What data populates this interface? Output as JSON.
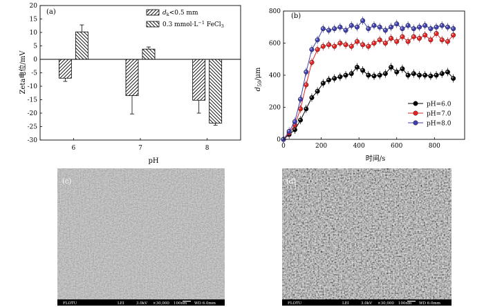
{
  "chart_data": [
    {
      "panel": "(a)",
      "type": "bar",
      "categories": [
        "6",
        "7",
        "8"
      ],
      "xlabel": "pH",
      "ylabel": "Zeta电位/mV",
      "ylim": [
        -30,
        20
      ],
      "yticks": [
        "20",
        "15",
        "10",
        "5",
        "0",
        "-5",
        "-10",
        "-15",
        "-20",
        "-25",
        "-30"
      ],
      "legend_position": "top-right",
      "series": [
        {
          "legend_pre": "d",
          "legend_sub": "k",
          "legend_post": "<0.5 mm",
          "hatch": "forward",
          "values": [
            -7,
            -13.5,
            -15.2
          ],
          "errors": [
            1.2,
            6.8,
            4.8
          ]
        },
        {
          "legend_pre": "0.3 mmol·L",
          "legend_sup": "−1",
          "legend_post": " FeCl",
          "legend_sub": "3",
          "hatch": "back",
          "values": [
            10.2,
            3.8,
            -23.7
          ],
          "errors": [
            2.6,
            0.8,
            0.8
          ]
        }
      ]
    },
    {
      "panel": "(b)",
      "type": "line",
      "xlabel": "时间/s",
      "ylabel_pre": "d",
      "ylabel_sub": "50",
      "ylabel_post": "/μm",
      "xlim": [
        0,
        960
      ],
      "ylim": [
        0,
        800
      ],
      "xticks": [
        "0",
        "200",
        "400",
        "600",
        "800"
      ],
      "yticks": [
        "0",
        "200",
        "400",
        "600",
        "800"
      ],
      "legend_position": "right",
      "x": [
        0,
        30,
        60,
        90,
        120,
        150,
        180,
        210,
        240,
        270,
        300,
        330,
        360,
        390,
        420,
        450,
        480,
        510,
        540,
        570,
        600,
        630,
        660,
        690,
        720,
        750,
        780,
        810,
        840,
        870,
        900
      ],
      "series": [
        {
          "name": "pH=6.0",
          "color": "#000000",
          "values": [
            0,
            30,
            60,
            120,
            190,
            260,
            300,
            350,
            370,
            380,
            390,
            400,
            410,
            450,
            430,
            400,
            395,
            400,
            410,
            450,
            420,
            440,
            400,
            410,
            400,
            400,
            395,
            400,
            410,
            420,
            380
          ]
        },
        {
          "name": "pH=7.0",
          "color": "#e52222",
          "values": [
            0,
            40,
            90,
            190,
            340,
            480,
            560,
            580,
            590,
            580,
            600,
            590,
            580,
            610,
            590,
            580,
            600,
            620,
            600,
            630,
            610,
            640,
            610,
            640,
            630,
            650,
            620,
            660,
            620,
            610,
            650
          ]
        },
        {
          "name": "pH=8.0",
          "color": "#3f3fb0",
          "values": [
            0,
            50,
            110,
            250,
            420,
            560,
            620,
            690,
            680,
            690,
            700,
            680,
            710,
            700,
            740,
            690,
            710,
            700,
            680,
            700,
            720,
            690,
            710,
            690,
            700,
            710,
            690,
            700,
            710,
            700,
            690
          ]
        }
      ]
    }
  ],
  "micrographs": [
    {
      "label": "(c)",
      "footer": [
        "FLOTU",
        "LEI",
        "3.0kV",
        "×30,000",
        "100nm",
        "WD 6.0mm"
      ]
    },
    {
      "label": "(d)",
      "footer": [
        "FLOTU",
        "LEI",
        "3.0kV",
        "×30,000",
        "100nm",
        "WD 6.0mm"
      ]
    }
  ]
}
